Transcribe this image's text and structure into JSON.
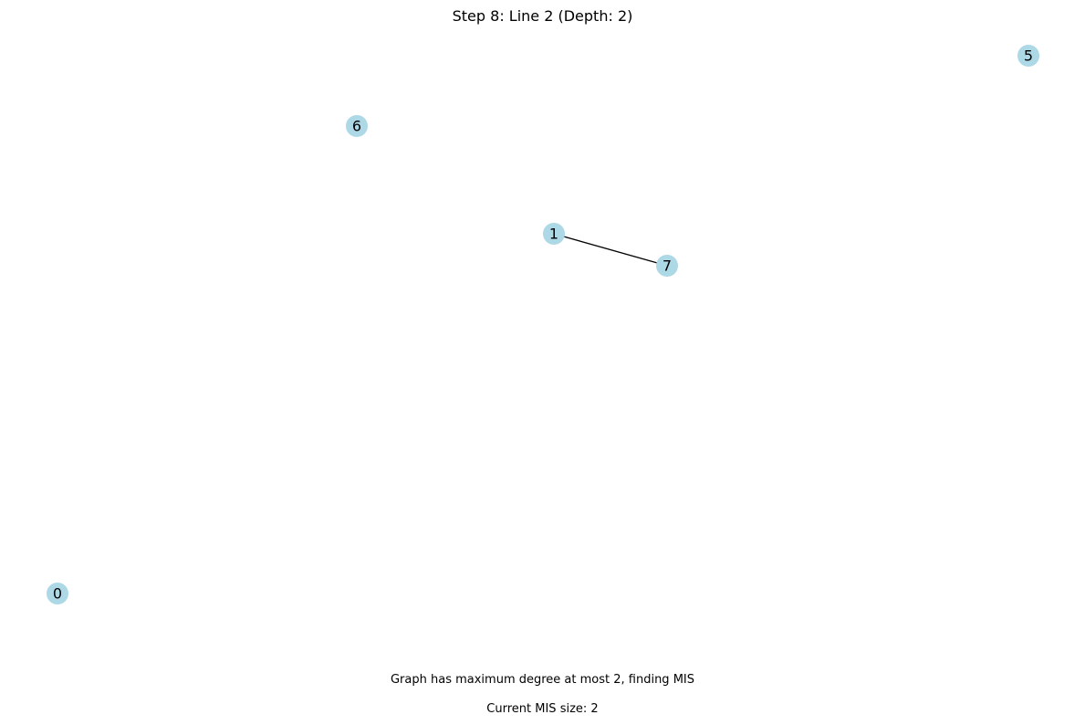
{
  "title": "Step 8: Line 2 (Depth: 2)",
  "status_text": "Graph has maximum degree at most 2, finding MIS",
  "mis_text": "Current MIS size: 2",
  "colors": {
    "node_fill": "#add8e6",
    "edge": "#000000",
    "text": "#000000"
  },
  "graph": {
    "nodes": [
      {
        "id": "0",
        "label": "0"
      },
      {
        "id": "1",
        "label": "1"
      },
      {
        "id": "5",
        "label": "5"
      },
      {
        "id": "6",
        "label": "6"
      },
      {
        "id": "7",
        "label": "7"
      }
    ],
    "edges": [
      {
        "source": "1",
        "target": "7"
      }
    ]
  }
}
